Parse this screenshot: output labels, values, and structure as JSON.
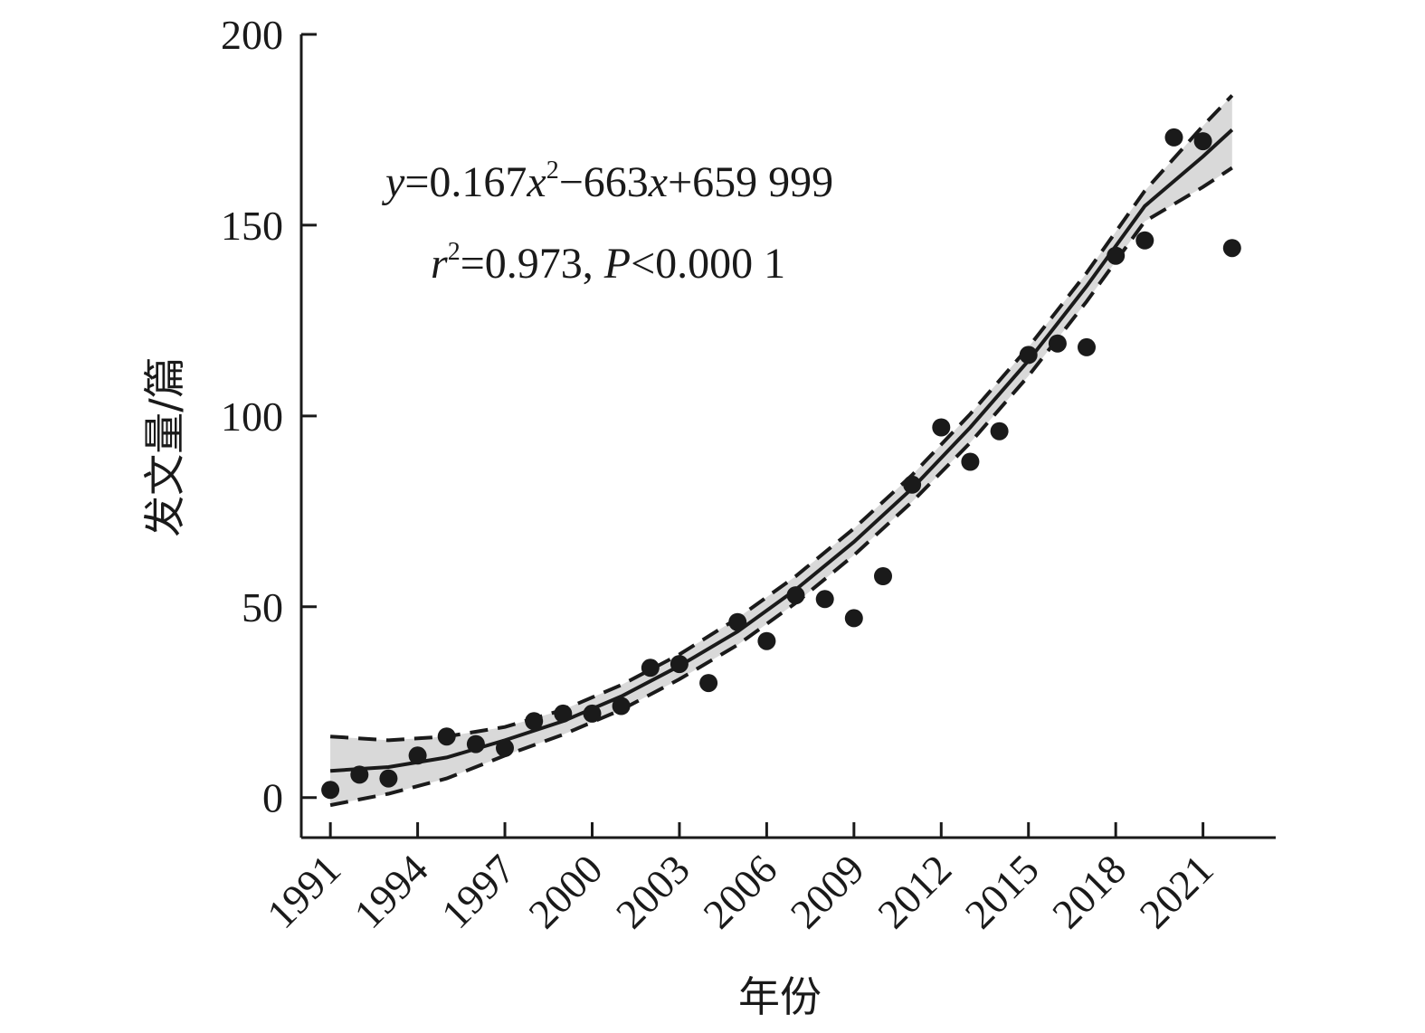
{
  "chart_data": {
    "type": "scatter",
    "title": "",
    "xlabel": "年份",
    "ylabel": "发文量/篇",
    "xlim": [
      1990,
      2023.5
    ],
    "ylim": [
      -10.5,
      200
    ],
    "x_ticks": [
      1991,
      1994,
      1997,
      2000,
      2003,
      2006,
      2009,
      2012,
      2015,
      2018,
      2021
    ],
    "x_tick_labels": [
      "1991",
      "1994",
      "1997",
      "2000",
      "2003",
      "2006",
      "2009",
      "2012",
      "2015",
      "2018",
      "2021"
    ],
    "y_ticks": [
      0,
      50,
      100,
      150,
      200
    ],
    "y_tick_labels": [
      "0",
      "50",
      "100",
      "150",
      "200"
    ],
    "grid": false,
    "legend": "none",
    "series": [
      {
        "kind": "points",
        "x": [
          1991,
          1992,
          1993,
          1994,
          1995,
          1996,
          1997,
          1998,
          1999,
          2000,
          2001,
          2002,
          2003,
          2004,
          2005,
          2006,
          2007,
          2008,
          2009,
          2010,
          2011,
          2012,
          2013,
          2014,
          2015,
          2016,
          2017,
          2018,
          2019,
          2020,
          2021,
          2022
        ],
        "y": [
          2,
          6,
          5,
          11,
          16,
          14,
          13,
          20,
          22,
          22,
          24,
          34,
          35,
          30,
          46,
          41,
          53,
          52,
          47,
          58,
          82,
          97,
          88,
          96,
          116,
          119,
          118,
          142,
          146,
          173,
          172,
          144
        ]
      },
      {
        "kind": "fit",
        "x": [
          1991,
          1993,
          1995,
          1997,
          1999,
          2001,
          2003,
          2005,
          2007,
          2009,
          2011,
          2013,
          2015,
          2017,
          2019,
          2021,
          2022
        ],
        "y": [
          7,
          8,
          10.5,
          15,
          20,
          26.5,
          34.5,
          43.5,
          54.5,
          67,
          81,
          97,
          114.5,
          134,
          155,
          168,
          175
        ]
      },
      {
        "kind": "ci-upper",
        "x": [
          1991,
          1993,
          1995,
          1997,
          1999,
          2001,
          2003,
          2005,
          2007,
          2009,
          2011,
          2013,
          2015,
          2017,
          2019,
          2021,
          2022
        ],
        "y": [
          16,
          15,
          16,
          18.5,
          23,
          29.5,
          37.5,
          47,
          58,
          70.5,
          84.5,
          100.5,
          118,
          137.5,
          159,
          176,
          184
        ]
      },
      {
        "kind": "ci-lower",
        "x": [
          1991,
          1993,
          1995,
          1997,
          1999,
          2001,
          2003,
          2005,
          2007,
          2009,
          2011,
          2013,
          2015,
          2017,
          2019,
          2021,
          2022
        ],
        "y": [
          -2,
          1,
          5,
          11,
          16.5,
          23,
          31,
          40,
          51,
          63.5,
          77.5,
          93,
          110.5,
          130,
          151,
          160,
          165
        ]
      }
    ],
    "annotations": {
      "equation": {
        "y": "y",
        "eq1": "=0.167",
        "x1": "x",
        "sup": "2",
        "eq2": "−663",
        "x2": "x",
        "eq3": "+659 999"
      },
      "stats": {
        "r": "r",
        "sup": "2",
        "part1": "=0.973, ",
        "p": "P",
        "part2": "<0.000 1"
      }
    },
    "colors": {
      "points": "#1a1a1a",
      "fit": "#1a1a1a",
      "ci_band": "#d9d9d9",
      "ci_lines": "#1a1a1a",
      "axis": "#1a1a1a"
    }
  }
}
